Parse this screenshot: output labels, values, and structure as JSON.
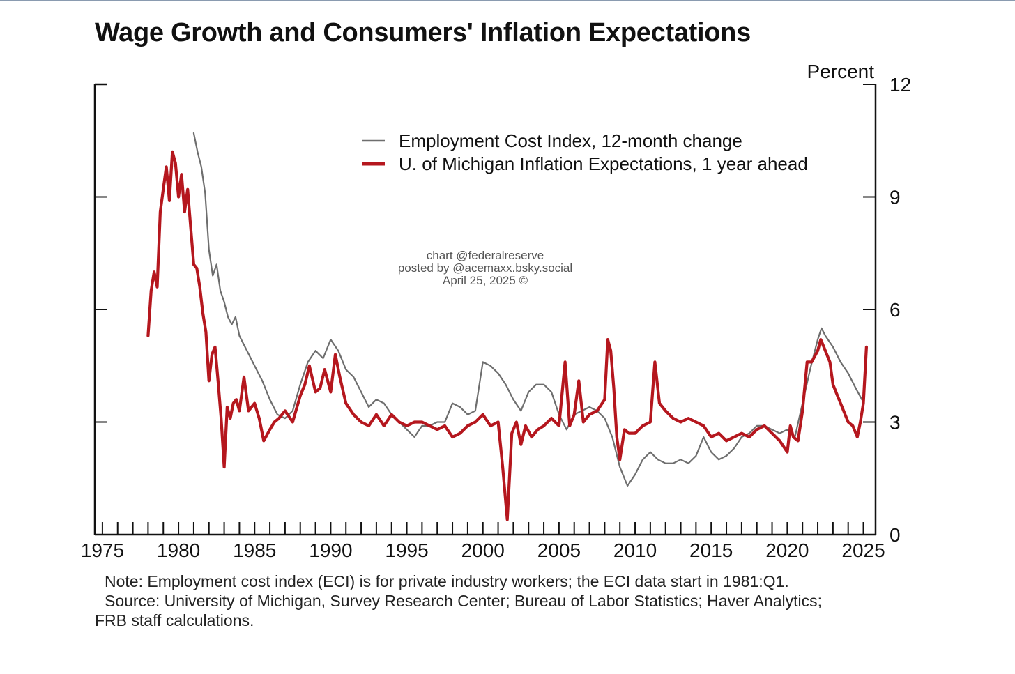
{
  "title": "Wage Growth and Consumers' Inflation Expectations",
  "notes": {
    "note": "Note: Employment cost index (ECI) is for private industry workers; the ECI data start in 1981:Q1.",
    "source_line1": "Source: University of Michigan, Survey Research Center; Bureau of Labor Statistics; Haver Analytics;",
    "source_line2": "FRB staff calculations."
  },
  "watermark": {
    "line1": "chart @federalreserve",
    "line2": "posted by @acemaxx.bsky.social",
    "line3": "April 25, 2025 ©"
  },
  "colors": {
    "eci": "#6e6e6e",
    "michigan": "#b5171e"
  },
  "chart_data": {
    "type": "line",
    "title": "Wage Growth and Consumers' Inflation Expectations",
    "ylabel": "Percent",
    "ylim": [
      0,
      12
    ],
    "xlim": [
      1974.5,
      2025.8
    ],
    "y_ticks": [
      0,
      3,
      6,
      9,
      12
    ],
    "x_tick_labels": [
      "1975",
      "1980",
      "1985",
      "1990",
      "1995",
      "2000",
      "2005",
      "2010",
      "2015",
      "2020",
      "2025"
    ],
    "grid": false,
    "legend_position": "top-right",
    "series": [
      {
        "name": "Employment Cost Index, 12-month change",
        "color": "#6e6e6e",
        "x": [
          1981.0,
          1981.25,
          1981.5,
          1981.75,
          1982.0,
          1982.25,
          1982.5,
          1982.75,
          1983.0,
          1983.25,
          1983.5,
          1983.75,
          1984.0,
          1984.5,
          1985.0,
          1985.5,
          1986.0,
          1986.5,
          1987.0,
          1987.5,
          1988.0,
          1988.5,
          1989.0,
          1989.5,
          1990.0,
          1990.5,
          1991.0,
          1991.5,
          1992.0,
          1992.5,
          1993.0,
          1993.5,
          1994.0,
          1994.5,
          1995.0,
          1995.5,
          1996.0,
          1996.5,
          1997.0,
          1997.5,
          1998.0,
          1998.5,
          1999.0,
          1999.5,
          2000.0,
          2000.5,
          2001.0,
          2001.5,
          2002.0,
          2002.5,
          2003.0,
          2003.5,
          2004.0,
          2004.5,
          2005.0,
          2005.5,
          2006.0,
          2006.5,
          2007.0,
          2007.5,
          2008.0,
          2008.5,
          2009.0,
          2009.5,
          2010.0,
          2010.5,
          2011.0,
          2011.5,
          2012.0,
          2012.5,
          2013.0,
          2013.5,
          2014.0,
          2014.5,
          2015.0,
          2015.5,
          2016.0,
          2016.5,
          2017.0,
          2017.5,
          2018.0,
          2018.5,
          2019.0,
          2019.5,
          2020.0,
          2020.5,
          2021.0,
          2021.5,
          2022.0,
          2022.25,
          2022.5,
          2023.0,
          2023.5,
          2024.0,
          2024.5,
          2024.9
        ],
        "values": [
          10.7,
          10.2,
          9.8,
          9.1,
          7.6,
          6.9,
          7.2,
          6.5,
          6.2,
          5.8,
          5.6,
          5.8,
          5.3,
          4.9,
          4.5,
          4.1,
          3.6,
          3.2,
          3.1,
          3.3,
          4.0,
          4.6,
          4.9,
          4.7,
          5.2,
          4.9,
          4.4,
          4.2,
          3.8,
          3.4,
          3.6,
          3.5,
          3.2,
          3.0,
          2.8,
          2.6,
          2.9,
          2.9,
          3.0,
          3.0,
          3.5,
          3.4,
          3.2,
          3.3,
          4.6,
          4.5,
          4.3,
          4.0,
          3.6,
          3.3,
          3.8,
          4.0,
          4.0,
          3.8,
          3.2,
          2.8,
          3.2,
          3.3,
          3.4,
          3.3,
          3.1,
          2.6,
          1.8,
          1.3,
          1.6,
          2.0,
          2.2,
          2.0,
          1.9,
          1.9,
          2.0,
          1.9,
          2.1,
          2.6,
          2.2,
          2.0,
          2.1,
          2.3,
          2.6,
          2.7,
          2.9,
          2.9,
          2.8,
          2.7,
          2.8,
          2.6,
          3.5,
          4.4,
          5.2,
          5.5,
          5.3,
          5.0,
          4.6,
          4.3,
          3.9,
          3.6
        ]
      },
      {
        "name": "U. of Michigan Inflation Expectations, 1 year ahead",
        "color": "#b5171e",
        "x": [
          1978.0,
          1978.2,
          1978.4,
          1978.6,
          1978.8,
          1979.0,
          1979.2,
          1979.4,
          1979.6,
          1979.8,
          1980.0,
          1980.2,
          1980.4,
          1980.6,
          1980.8,
          1981.0,
          1981.2,
          1981.4,
          1981.6,
          1981.8,
          1982.0,
          1982.2,
          1982.4,
          1982.6,
          1982.8,
          1983.0,
          1983.2,
          1983.4,
          1983.6,
          1983.8,
          1984.0,
          1984.3,
          1984.6,
          1985.0,
          1985.3,
          1985.6,
          1986.0,
          1986.3,
          1986.6,
          1987.0,
          1987.5,
          1988.0,
          1988.3,
          1988.6,
          1989.0,
          1989.3,
          1989.6,
          1990.0,
          1990.3,
          1990.6,
          1991.0,
          1991.5,
          1992.0,
          1992.5,
          1993.0,
          1993.5,
          1994.0,
          1994.5,
          1995.0,
          1995.5,
          1996.0,
          1996.5,
          1997.0,
          1997.5,
          1998.0,
          1998.5,
          1999.0,
          1999.5,
          2000.0,
          2000.5,
          2001.0,
          2001.3,
          2001.6,
          2001.9,
          2002.2,
          2002.5,
          2002.8,
          2003.2,
          2003.6,
          2004.0,
          2004.5,
          2005.0,
          2005.4,
          2005.7,
          2006.0,
          2006.3,
          2006.6,
          2007.0,
          2007.5,
          2008.0,
          2008.2,
          2008.4,
          2008.6,
          2008.8,
          2009.0,
          2009.3,
          2009.6,
          2010.0,
          2010.5,
          2011.0,
          2011.3,
          2011.6,
          2012.0,
          2012.5,
          2013.0,
          2013.5,
          2014.0,
          2014.5,
          2015.0,
          2015.5,
          2016.0,
          2016.5,
          2017.0,
          2017.5,
          2018.0,
          2018.5,
          2019.0,
          2019.5,
          2020.0,
          2020.2,
          2020.4,
          2020.7,
          2021.0,
          2021.3,
          2021.6,
          2022.0,
          2022.2,
          2022.4,
          2022.6,
          2022.8,
          2023.0,
          2023.3,
          2023.6,
          2024.0,
          2024.3,
          2024.6,
          2024.8,
          2025.0,
          2025.2
        ],
        "values": [
          5.3,
          6.5,
          7.0,
          6.6,
          8.6,
          9.2,
          9.8,
          8.9,
          10.2,
          9.9,
          9.0,
          9.6,
          8.6,
          9.2,
          8.2,
          7.2,
          7.1,
          6.6,
          5.9,
          5.4,
          4.1,
          4.8,
          5.0,
          4.1,
          3.1,
          1.8,
          3.4,
          3.1,
          3.5,
          3.6,
          3.3,
          4.2,
          3.3,
          3.5,
          3.1,
          2.5,
          2.8,
          3.0,
          3.1,
          3.3,
          3.0,
          3.7,
          4.0,
          4.5,
          3.8,
          3.9,
          4.4,
          3.8,
          4.8,
          4.2,
          3.5,
          3.2,
          3.0,
          2.9,
          3.2,
          2.9,
          3.2,
          3.0,
          2.9,
          3.0,
          3.0,
          2.9,
          2.8,
          2.9,
          2.6,
          2.7,
          2.9,
          3.0,
          3.2,
          2.9,
          3.0,
          1.8,
          0.4,
          2.7,
          3.0,
          2.4,
          2.9,
          2.6,
          2.8,
          2.9,
          3.1,
          2.9,
          4.6,
          2.9,
          3.2,
          4.1,
          3.0,
          3.2,
          3.3,
          3.6,
          5.2,
          4.9,
          3.9,
          2.6,
          2.0,
          2.8,
          2.7,
          2.7,
          2.9,
          3.0,
          4.6,
          3.5,
          3.3,
          3.1,
          3.0,
          3.1,
          3.0,
          2.9,
          2.6,
          2.7,
          2.5,
          2.6,
          2.7,
          2.6,
          2.8,
          2.9,
          2.7,
          2.5,
          2.2,
          2.9,
          2.6,
          2.5,
          3.3,
          4.6,
          4.6,
          4.9,
          5.2,
          5.0,
          4.8,
          4.6,
          4.0,
          3.7,
          3.4,
          3.0,
          2.9,
          2.6,
          3.0,
          3.5,
          5.0
        ]
      }
    ]
  }
}
